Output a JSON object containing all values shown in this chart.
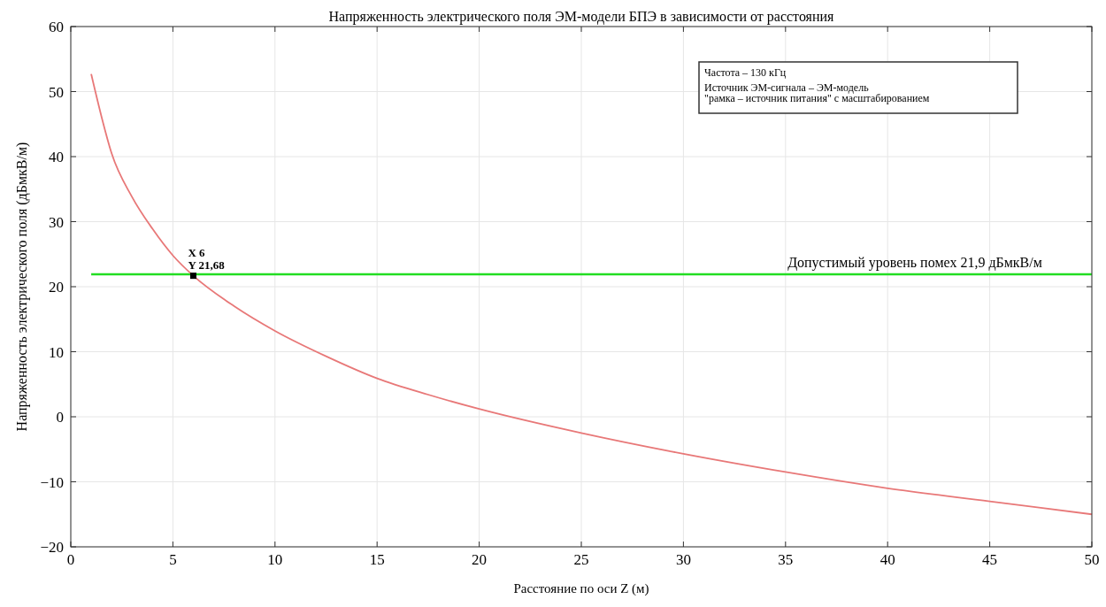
{
  "chart_data": {
    "type": "line",
    "title": "Напряженность электрического поля ЭМ-модели БПЭ в зависимости от расстояния",
    "xlabel": "Расстояние по оси Z (м)",
    "ylabel": "Напряженность электрического поля (дБмкВ/м)",
    "series": [
      {
        "x": [
          1,
          1.5,
          2,
          3,
          4,
          5,
          6,
          8,
          10,
          12.5,
          15,
          17.5,
          20,
          25,
          30,
          35,
          40,
          45,
          50
        ],
        "values": [
          52.7,
          46.2,
          40.5,
          33.8,
          28.9,
          24.8,
          21.68,
          17,
          13.2,
          9.3,
          5.9,
          3.4,
          1.2,
          -2.5,
          -5.7,
          -8.5,
          -11,
          -13,
          -15
        ],
        "color": "#e87878"
      },
      {
        "type": "scatter",
        "x": [
          6
        ],
        "values": [
          21.68
        ],
        "color": "#000000",
        "marker": "square"
      }
    ],
    "ref_lines": [
      {
        "axis": "y",
        "value": 21.9,
        "label": "Допустимый уровень помех 21,9 дБмкВ/м",
        "color": "#22dd22"
      }
    ],
    "annotations": [
      {
        "text": "X 6\nY 21,68",
        "x": 6,
        "y": 21.68
      },
      "Частота – 130 кГц\nИсточник ЭМ-сигнала – ЭМ-модель\n\"рамка – источник питания\" с масштабированием"
    ],
    "xlim": [
      0,
      50
    ],
    "xticks": [
      0,
      5,
      10,
      15,
      20,
      25,
      30,
      35,
      40,
      45,
      50
    ],
    "ylim": [
      -20,
      60
    ],
    "yticks": [
      -20,
      -10,
      0,
      10,
      20,
      30,
      40,
      50,
      60
    ],
    "grid": true,
    "marker": "none"
  }
}
